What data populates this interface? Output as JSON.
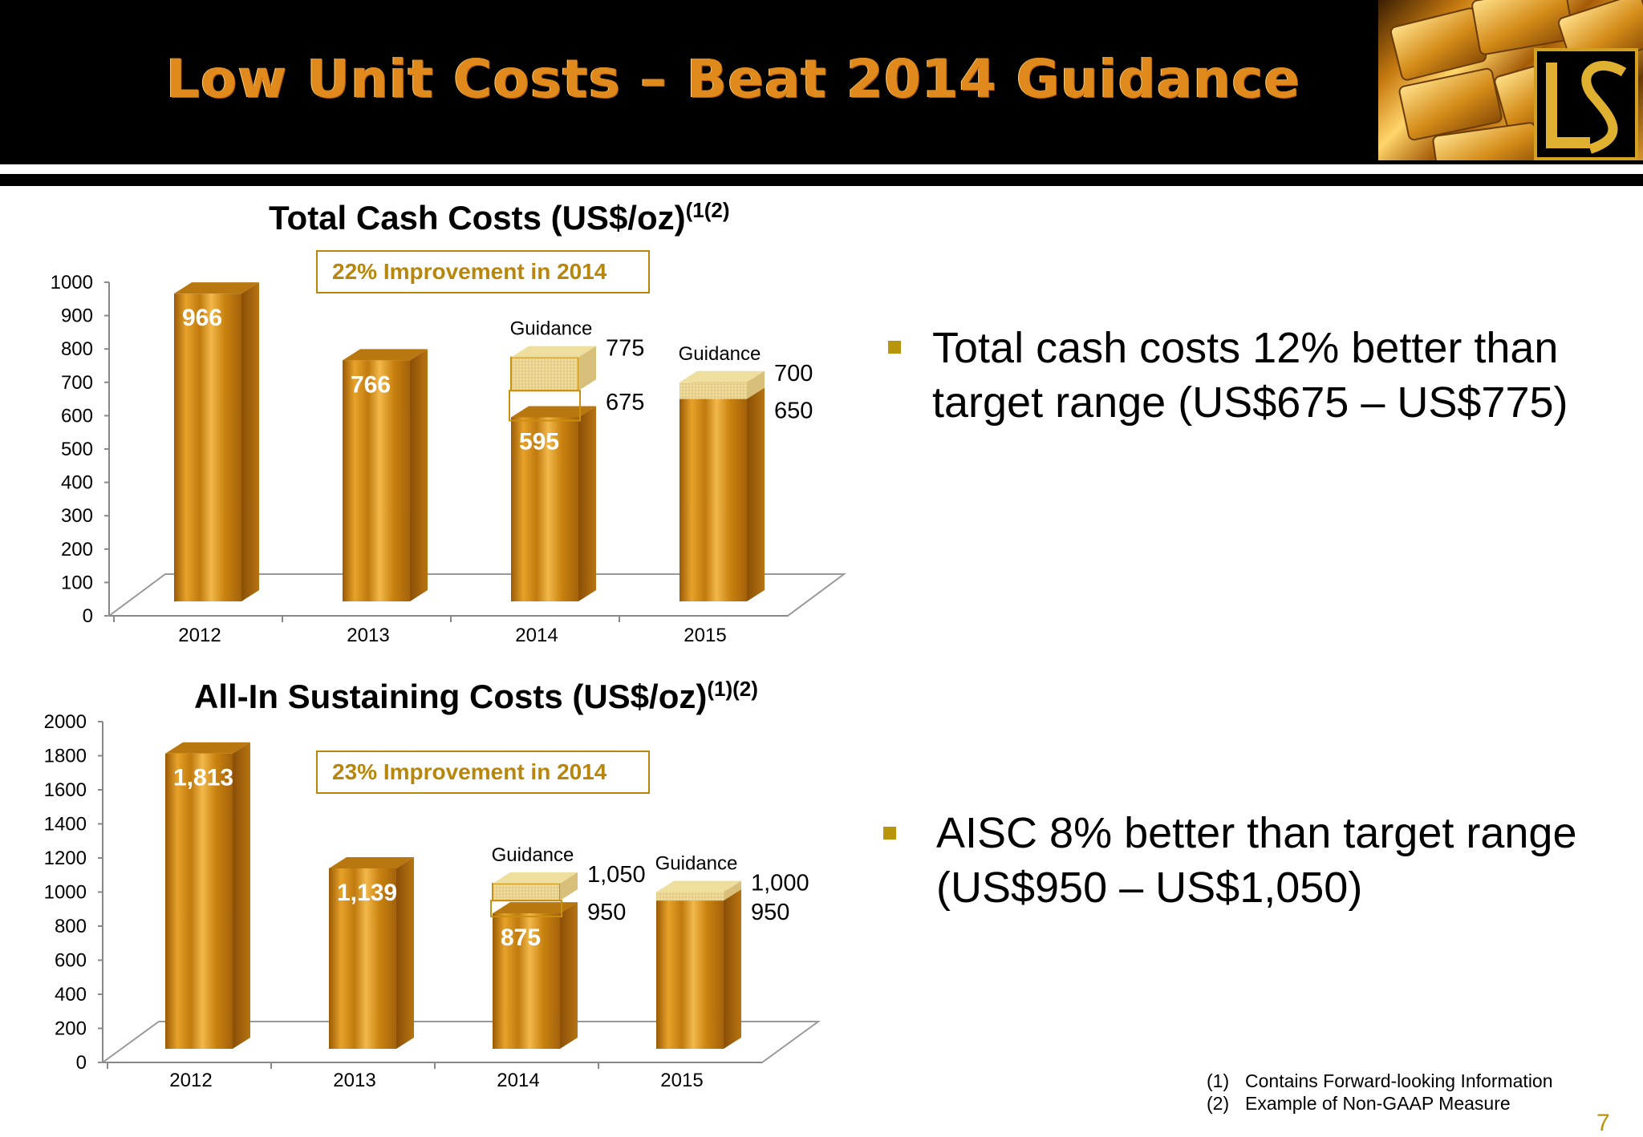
{
  "slide": {
    "title": "Low Unit Costs – Beat 2014 Guidance",
    "page_number": "7",
    "colors": {
      "title": "#e08a1e",
      "accent": "#b8860b",
      "bar_gold": "#d08a10",
      "guidance_fill": "#e8d08a"
    }
  },
  "chart_data": [
    {
      "type": "bar",
      "title": "Total Cash Costs (US$/oz)",
      "title_sup": "(1(2)",
      "callout": "22% Improvement in 2014",
      "categories": [
        "2012",
        "2013",
        "2014",
        "2015"
      ],
      "values": [
        966,
        766,
        595,
        675
      ],
      "value_labels": [
        "966",
        "766",
        "595",
        ""
      ],
      "ylim": [
        0,
        1000
      ],
      "yticks": [
        "0",
        "100",
        "200",
        "300",
        "400",
        "500",
        "600",
        "700",
        "800",
        "900",
        "1000"
      ],
      "guidance": [
        {
          "category": "2014",
          "label": "Guidance",
          "low": 675,
          "high": 775,
          "low_label": "675",
          "high_label": "775"
        },
        {
          "category": "2015",
          "label": "Guidance",
          "low": 650,
          "high": 700,
          "low_label": "650",
          "high_label": "700"
        }
      ]
    },
    {
      "type": "bar",
      "title": "All-In Sustaining Costs (US$/oz)",
      "title_sup": "(1)(2)",
      "callout": "23% Improvement in 2014",
      "categories": [
        "2012",
        "2013",
        "2014",
        "2015"
      ],
      "values": [
        1813,
        1139,
        875,
        950
      ],
      "value_labels": [
        "1,813",
        "1,139",
        "875",
        ""
      ],
      "ylim": [
        0,
        2000
      ],
      "yticks": [
        "0",
        "200",
        "400",
        "600",
        "800",
        "1000",
        "1200",
        "1400",
        "1600",
        "1800",
        "2000"
      ],
      "guidance": [
        {
          "category": "2014",
          "label": "Guidance",
          "low": 950,
          "high": 1050,
          "low_label": "950",
          "high_label": "1,050"
        },
        {
          "category": "2015",
          "label": "Guidance",
          "low": 950,
          "high": 1000,
          "low_label": "950",
          "high_label": "1,000"
        }
      ]
    }
  ],
  "bullets": [
    "Total cash costs 12% better than target range (US$675 – US$775)",
    "AISC 8% better than target range (US$950 – US$1,050)"
  ],
  "footnotes": [
    {
      "num": "(1)",
      "text": "Contains Forward-looking Information"
    },
    {
      "num": "(2)",
      "text": "Example of Non-GAAP Measure"
    }
  ]
}
